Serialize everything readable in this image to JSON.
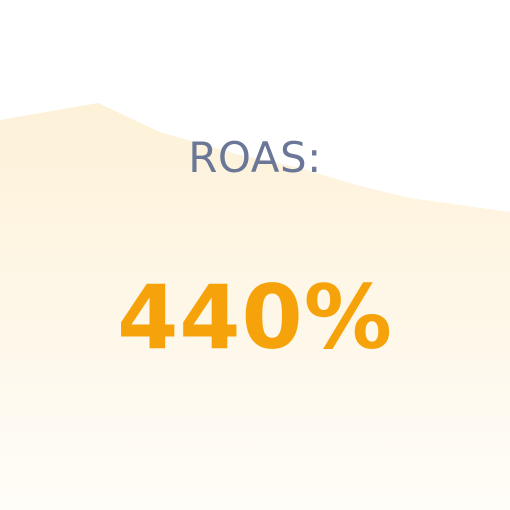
{
  "metric": {
    "label": "ROAS:",
    "value": "440%"
  },
  "colors": {
    "label": "#6b7796",
    "value": "#f6a30b",
    "background_wave_top": "#fdf1d8",
    "background_wave_bottom": "#fffdf8",
    "background": "#ffffff"
  }
}
